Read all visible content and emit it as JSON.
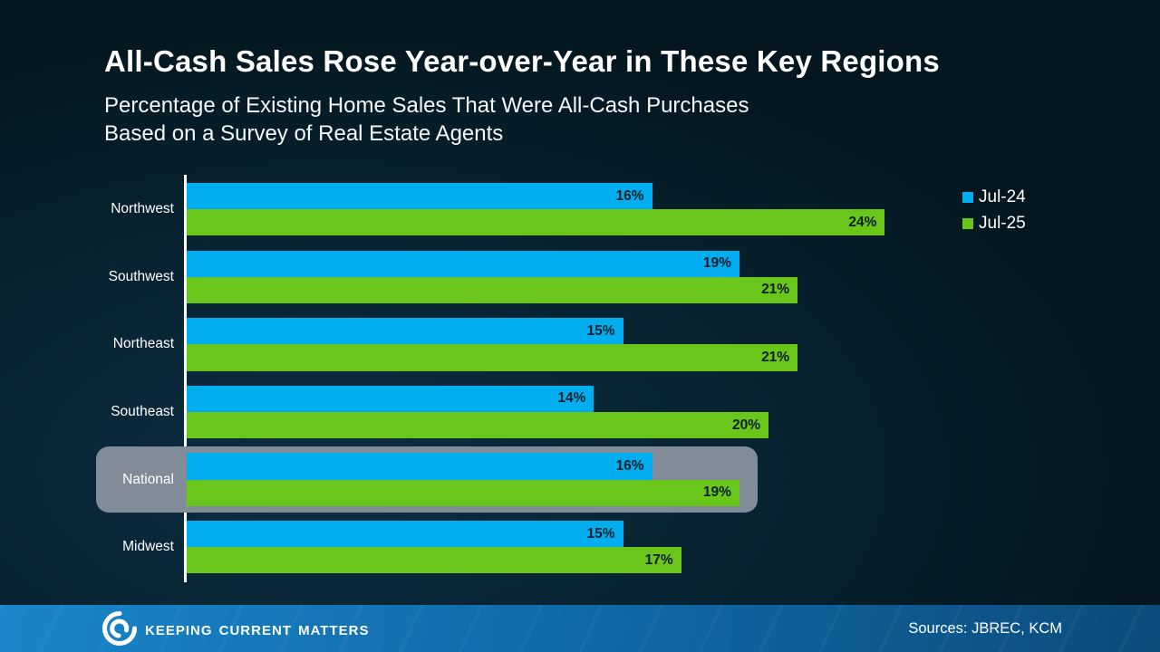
{
  "chart_data": {
    "type": "bar",
    "orientation": "horizontal",
    "title": "All-Cash Sales Rose Year-over-Year in These Key Regions",
    "subtitle_line1": "Percentage of Existing Home Sales That Were All-Cash Purchases",
    "subtitle_line2": "Based on a Survey of Real Estate Agents",
    "categories": [
      "Northwest",
      "Southwest",
      "Northeast",
      "Southeast",
      "National",
      "Midwest"
    ],
    "series": [
      {
        "name": "Jul-24",
        "color": "#00ADEE",
        "values": [
          16,
          19,
          15,
          14,
          16,
          15
        ]
      },
      {
        "name": "Jul-25",
        "color": "#6AC61A",
        "values": [
          24,
          21,
          21,
          20,
          19,
          17
        ]
      }
    ],
    "value_suffix": "%",
    "highlighted_category": "National",
    "highlight_color": "#828C99",
    "xlim": [
      0,
      26
    ],
    "grid": false,
    "legend_position": "top-right",
    "value_label_color": "#0a1e2b",
    "axis_color": "#ffffff"
  },
  "footer": {
    "brand": "Keeping Current Matters",
    "logo": "kcm-swirl-icon",
    "sources": "Sources: JBREC, KCM",
    "bar_color_left": "#1886CA",
    "bar_color_right": "#0A4C7C"
  }
}
